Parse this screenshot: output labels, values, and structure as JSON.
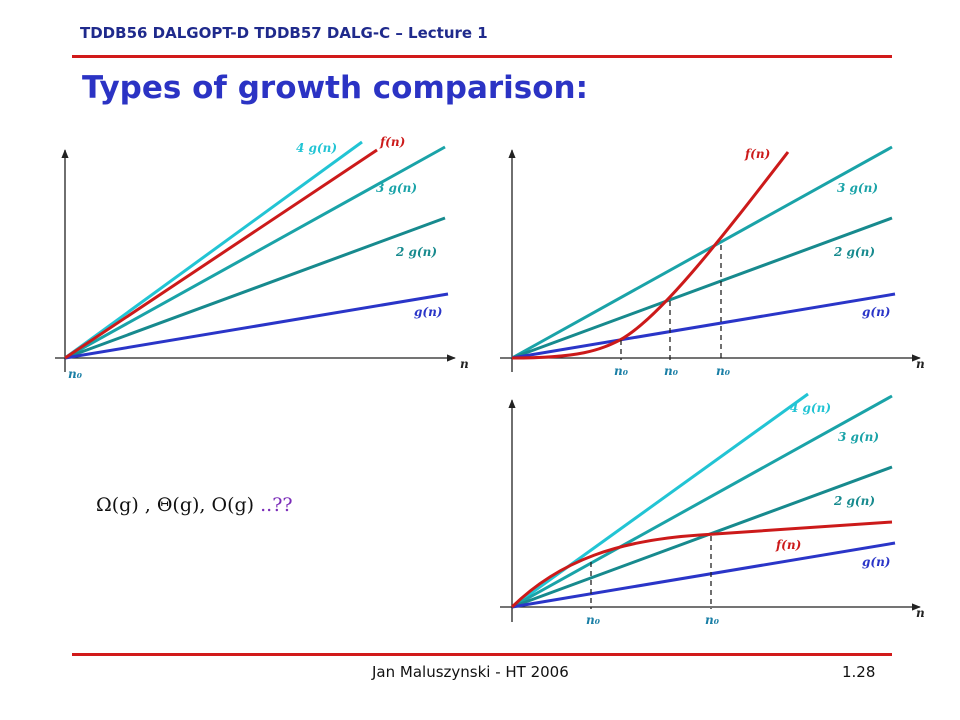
{
  "header": {
    "course": "TDDB56  DALGOPT-D  TDDB57 DALG-C – Lecture 1"
  },
  "slide": {
    "title": "Types of growth comparison:",
    "formula": "Ω(g) ,  Θ(g),  O(g)",
    "formula_suffix": "  ..??"
  },
  "colors": {
    "cyan": "#22c4d4",
    "teal": "#1aa3a8",
    "darkteal": "#178a8e",
    "blue": "#2a35c8",
    "red": "#cc1a1a",
    "title": "#2b33c4",
    "rule": "#d11a1a"
  },
  "panels": {
    "left": {
      "lines": [
        "4 g(n)",
        "f(n)",
        "3 g(n)",
        "2 g(n)",
        "g(n)"
      ],
      "axis_x": "n",
      "n0": "n₀"
    },
    "top_right": {
      "lines": [
        "f(n)",
        "3 g(n)",
        "2 g(n)",
        "g(n)"
      ],
      "axis_x": "n",
      "n0_labels": [
        "n₀",
        "n₀",
        "n₀"
      ]
    },
    "bottom_right": {
      "lines": [
        "4 g(n)",
        "3 g(n)",
        "2 g(n)",
        "f(n)",
        "g(n)"
      ],
      "axis_x": "n",
      "n0_labels": [
        "n₀",
        "n₀"
      ]
    }
  },
  "footer": {
    "author": "Jan Maluszynski - HT 2006",
    "page": "1.28"
  }
}
